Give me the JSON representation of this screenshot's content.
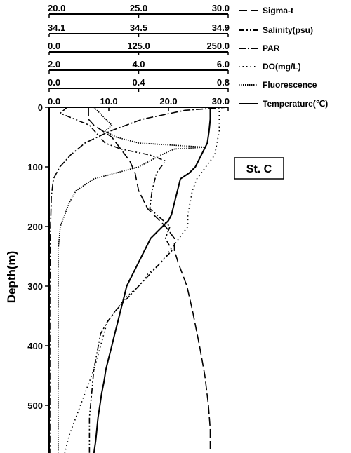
{
  "chart_data": {
    "type": "line",
    "station_label": "St. C",
    "ylabel": "Depth(m)",
    "y_axis": {
      "range": [
        0,
        580
      ],
      "ticks": [
        0,
        100,
        200,
        300,
        400,
        500
      ],
      "reversed": true
    },
    "axes": [
      {
        "name": "Sigma-t",
        "ticks": [
          "20.0",
          "25.0",
          "30.0"
        ],
        "range": [
          20,
          30
        ],
        "dash": "dash"
      },
      {
        "name": "Salinity(psu)",
        "ticks": [
          "34.1",
          "34.5",
          "34.9"
        ],
        "range": [
          34.1,
          34.9
        ],
        "dash": "dash-dot-dot"
      },
      {
        "name": "PAR",
        "ticks": [
          "0.0",
          "125.0",
          "250.0"
        ],
        "range": [
          0,
          250
        ],
        "dash": "dash-dot"
      },
      {
        "name": "DO(mg/L)",
        "ticks": [
          "2.0",
          "4.0",
          "6.0"
        ],
        "range": [
          2,
          6
        ],
        "dash": "dot-sparse"
      },
      {
        "name": "Fluorescence",
        "ticks": [
          "0.0",
          "0.4",
          "0.8"
        ],
        "range": [
          0,
          0.8
        ],
        "dash": "dot-dense"
      },
      {
        "name": "Temperature(℃)",
        "ticks": [
          "0.0",
          "10.0",
          "20.0",
          "30.0"
        ],
        "range": [
          0,
          30
        ],
        "dash": "solid"
      }
    ],
    "series": [
      {
        "name": "Temperature(℃)",
        "axis": 5,
        "dash": "solid",
        "points": [
          [
            27,
            0
          ],
          [
            27,
            20
          ],
          [
            26.8,
            40
          ],
          [
            26.5,
            60
          ],
          [
            25.5,
            80
          ],
          [
            24.5,
            100
          ],
          [
            23.5,
            110
          ],
          [
            22,
            120
          ],
          [
            21.5,
            140
          ],
          [
            21,
            160
          ],
          [
            20.5,
            180
          ],
          [
            20,
            190
          ],
          [
            19,
            200
          ],
          [
            17,
            220
          ],
          [
            16,
            240
          ],
          [
            15,
            260
          ],
          [
            14,
            280
          ],
          [
            13,
            300
          ],
          [
            12.5,
            320
          ],
          [
            12,
            340
          ],
          [
            11.5,
            360
          ],
          [
            11,
            380
          ],
          [
            10.5,
            400
          ],
          [
            10,
            420
          ],
          [
            9.5,
            440
          ],
          [
            9.2,
            460
          ],
          [
            8.8,
            480
          ],
          [
            8.5,
            500
          ],
          [
            8.2,
            520
          ],
          [
            8,
            540
          ],
          [
            7.8,
            560
          ],
          [
            7.5,
            580
          ]
        ]
      },
      {
        "name": "Sigma-t",
        "axis": 0,
        "dash": "dash",
        "points": [
          [
            22.2,
            0
          ],
          [
            22.2,
            20
          ],
          [
            22.5,
            30
          ],
          [
            23.5,
            50
          ],
          [
            24,
            70
          ],
          [
            24.5,
            90
          ],
          [
            24.8,
            110
          ],
          [
            25,
            140
          ],
          [
            25.5,
            170
          ],
          [
            26.5,
            200
          ],
          [
            27,
            220
          ],
          [
            27,
            240
          ],
          [
            27.2,
            260
          ],
          [
            27.7,
            300
          ],
          [
            28,
            340
          ],
          [
            28.4,
            400
          ],
          [
            28.7,
            450
          ],
          [
            28.9,
            500
          ],
          [
            29,
            540
          ],
          [
            29,
            580
          ]
        ]
      },
      {
        "name": "Salinity(psu)",
        "axis": 1,
        "dash": "dash-dot-dot",
        "points": [
          [
            34.18,
            0
          ],
          [
            34.15,
            10
          ],
          [
            34.28,
            30
          ],
          [
            34.35,
            60
          ],
          [
            34.42,
            70
          ],
          [
            34.55,
            80
          ],
          [
            34.62,
            90
          ],
          [
            34.6,
            100
          ],
          [
            34.58,
            110
          ],
          [
            34.56,
            140
          ],
          [
            34.55,
            170
          ],
          [
            34.64,
            200
          ],
          [
            34.62,
            220
          ],
          [
            34.65,
            240
          ],
          [
            34.6,
            260
          ],
          [
            34.55,
            280
          ],
          [
            34.5,
            300
          ],
          [
            34.45,
            320
          ],
          [
            34.4,
            340
          ],
          [
            34.36,
            360
          ],
          [
            34.33,
            380
          ],
          [
            34.32,
            400
          ],
          [
            34.31,
            420
          ],
          [
            34.3,
            440
          ],
          [
            34.29,
            480
          ],
          [
            34.28,
            520
          ],
          [
            34.28,
            580
          ]
        ]
      },
      {
        "name": "PAR",
        "axis": 2,
        "dash": "dash-dot",
        "points": [
          [
            250,
            0
          ],
          [
            190,
            5
          ],
          [
            130,
            20
          ],
          [
            85,
            40
          ],
          [
            50,
            60
          ],
          [
            30,
            80
          ],
          [
            15,
            100
          ],
          [
            6,
            120
          ],
          [
            3,
            150
          ],
          [
            2,
            200
          ],
          [
            1,
            300
          ],
          [
            1,
            400
          ],
          [
            1,
            500
          ],
          [
            1,
            580
          ]
        ]
      },
      {
        "name": "DO(mg/L)",
        "axis": 3,
        "dash": "dot-sparse",
        "points": [
          [
            5.8,
            0
          ],
          [
            5.8,
            40
          ],
          [
            5.7,
            80
          ],
          [
            5.5,
            100
          ],
          [
            5.4,
            110
          ],
          [
            5.3,
            120
          ],
          [
            5.2,
            140
          ],
          [
            5.15,
            160
          ],
          [
            5.1,
            180
          ],
          [
            5.1,
            200
          ],
          [
            4.8,
            230
          ],
          [
            4.5,
            260
          ],
          [
            4.2,
            280
          ],
          [
            4,
            300
          ],
          [
            3.7,
            320
          ],
          [
            3.5,
            340
          ],
          [
            3.3,
            360
          ],
          [
            3.15,
            400
          ],
          [
            3,
            440
          ],
          [
            2.8,
            480
          ],
          [
            2.6,
            520
          ],
          [
            2.45,
            550
          ],
          [
            2.35,
            580
          ]
        ]
      },
      {
        "name": "Fluorescence",
        "axis": 4,
        "dash": "dot-dense",
        "points": [
          [
            0.2,
            0
          ],
          [
            0.28,
            30
          ],
          [
            0.25,
            40
          ],
          [
            0.3,
            50
          ],
          [
            0.4,
            60
          ],
          [
            0.7,
            67
          ],
          [
            0.56,
            70
          ],
          [
            0.5,
            80
          ],
          [
            0.45,
            90
          ],
          [
            0.4,
            100
          ],
          [
            0.3,
            110
          ],
          [
            0.2,
            120
          ],
          [
            0.12,
            140
          ],
          [
            0.09,
            160
          ],
          [
            0.07,
            180
          ],
          [
            0.05,
            200
          ],
          [
            0.04,
            240
          ],
          [
            0.04,
            300
          ],
          [
            0.04,
            400
          ],
          [
            0.04,
            500
          ],
          [
            0.04,
            580
          ]
        ]
      }
    ]
  }
}
